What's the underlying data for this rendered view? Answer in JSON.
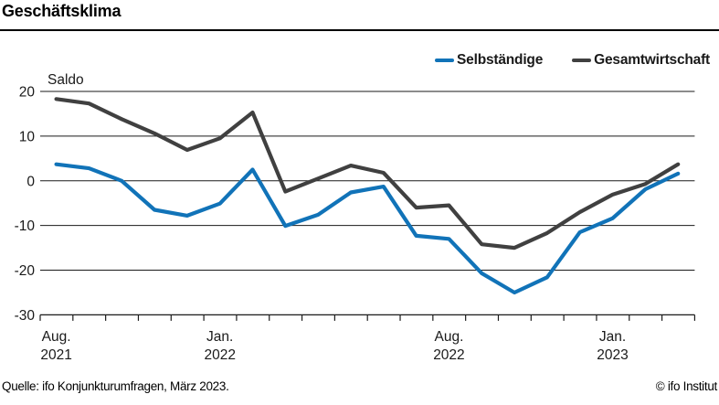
{
  "header": {
    "title": "Geschäftsklima"
  },
  "chart_data": {
    "type": "line",
    "title": "Geschäftsklima",
    "xlabel": "",
    "ylabel": "Saldo",
    "ylim": [
      -30,
      20
    ],
    "y_ticks": [
      20,
      10,
      0,
      -10,
      -20,
      -30
    ],
    "grid": "horizontal",
    "legend_position": "top-right",
    "x": [
      "Aug. 2021",
      "Sep. 2021",
      "Okt. 2021",
      "Nov. 2021",
      "Dez. 2021",
      "Jan. 2022",
      "Feb. 2022",
      "März 2022",
      "Apr. 2022",
      "Mai 2022",
      "Juni 2022",
      "Juli 2022",
      "Aug. 2022",
      "Sep. 2022",
      "Okt. 2022",
      "Nov. 2022",
      "Dez. 2022",
      "Jan. 2023",
      "Feb. 2023",
      "März 2023"
    ],
    "x_tick_labels": [
      {
        "index": 0,
        "line1": "Aug.",
        "line2": "2021"
      },
      {
        "index": 5,
        "line1": "Jan.",
        "line2": "2022"
      },
      {
        "index": 12,
        "line1": "Aug.",
        "line2": "2022"
      },
      {
        "index": 17,
        "line1": "Jan.",
        "line2": "2023"
      }
    ],
    "series": [
      {
        "name": "Selbständige",
        "color": "#1173b8",
        "values": [
          3.7,
          2.8,
          0.0,
          -6.5,
          -7.8,
          -5.1,
          2.5,
          -10.1,
          -7.6,
          -2.6,
          -1.3,
          -12.3,
          -13.0,
          -20.7,
          -25.0,
          -21.6,
          -11.5,
          -8.4,
          -1.9,
          1.6
        ]
      },
      {
        "name": "Gesamtwirtschaft",
        "color": "#404040",
        "values": [
          18.3,
          17.3,
          13.8,
          10.6,
          6.9,
          9.5,
          15.3,
          -2.4,
          0.5,
          3.4,
          1.8,
          -6.0,
          -5.5,
          -14.2,
          -15.0,
          -11.7,
          -7.0,
          -3.1,
          -0.7,
          3.7
        ]
      }
    ]
  },
  "footer": {
    "source": "Quelle: ifo Konjunkturumfragen, März 2023.",
    "copyright": "© ifo Institut"
  }
}
